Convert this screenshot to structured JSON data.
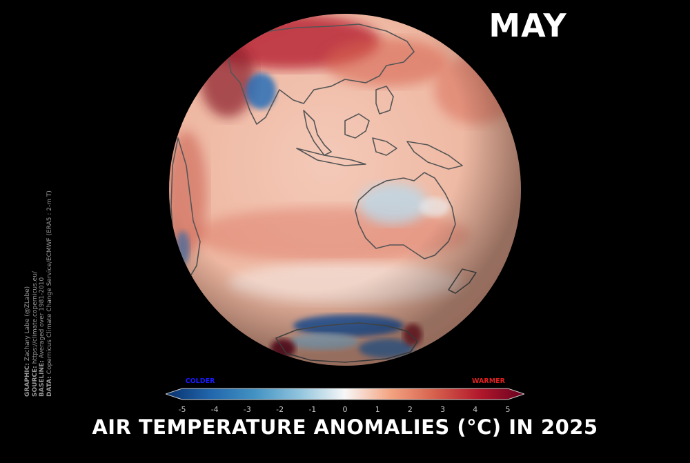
{
  "month": "MAY",
  "title": "AIR TEMPERATURE ANOMALIES (°C) IN 2025",
  "credits": [
    {
      "key": "GRAPHIC:",
      "value": "Zachary Labe (@ZLabe)"
    },
    {
      "key": "SOURCE:",
      "value": "https://climate.copernicus.eu/"
    },
    {
      "key": "BASELINE:",
      "value": "Averaged over 1981-2010"
    },
    {
      "key": "DATA:",
      "value": "Copernicus Climate Change Service/ECMWF (ERA5 : 2-m T)"
    }
  ],
  "colorbar": {
    "colder_label": "COLDER",
    "warmer_label": "WARMER",
    "colder_color": "#1a1aff",
    "warmer_color": "#e02020",
    "ticks": [
      "-5",
      "-4",
      "-3",
      "-2",
      "-1",
      "0",
      "1",
      "2",
      "3",
      "4",
      "5"
    ],
    "range": [
      -5,
      5
    ],
    "stops": [
      "#08306b",
      "#2166ac",
      "#4393c3",
      "#92c5de",
      "#f7f7f7",
      "#f4a582",
      "#d6604d",
      "#b2182b",
      "#67001f"
    ]
  },
  "map": {
    "projection": "orthographic",
    "background": "#000000",
    "coastline_color": "#555555"
  }
}
